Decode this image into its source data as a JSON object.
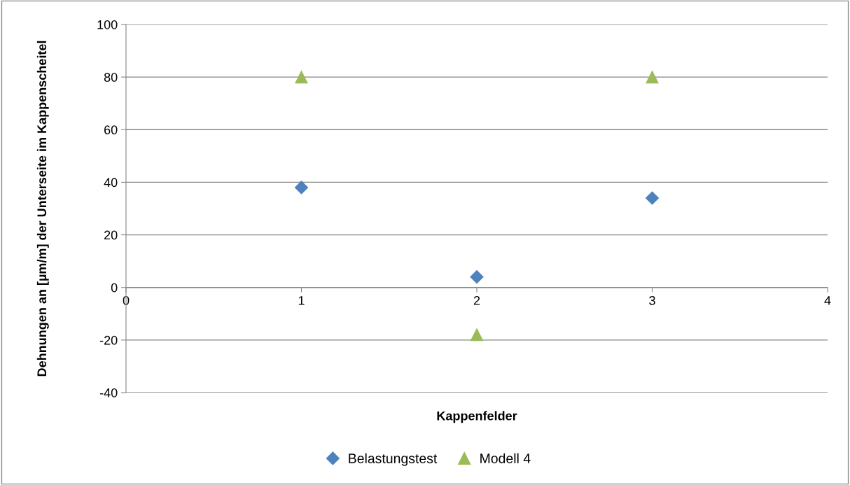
{
  "chart_data": {
    "type": "scatter",
    "xlabel": "Kappenfelder",
    "ylabel": "Dehnungen an [µm/m] der Unterseite im Kappenscheitel",
    "series": [
      {
        "name": "Belastungstest",
        "color": "#4f81bd",
        "marker": "diamond",
        "x": [
          1,
          2,
          3
        ],
        "values": [
          38,
          4,
          34
        ]
      },
      {
        "name": "Modell 4",
        "color": "#9bbb59",
        "marker": "triangle",
        "x": [
          1,
          2,
          3
        ],
        "values": [
          80,
          -18,
          80
        ]
      }
    ],
    "xlim": [
      0,
      4
    ],
    "xticks": [
      0,
      1,
      2,
      3,
      4
    ],
    "ylim": [
      -40,
      100
    ],
    "yticks": [
      -40,
      -20,
      0,
      20,
      40,
      60,
      80,
      100
    ],
    "grid": "y",
    "legend": "bottom"
  }
}
